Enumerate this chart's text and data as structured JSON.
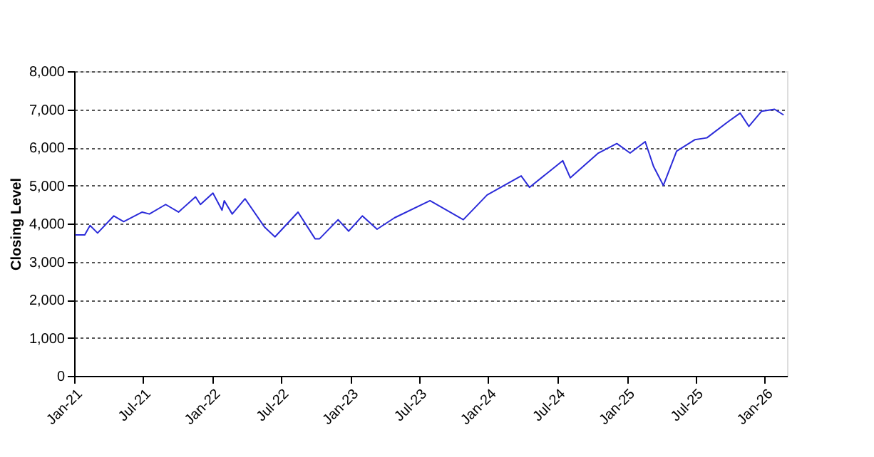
{
  "chart_data": {
    "type": "line",
    "ylabel": "Closing Level",
    "x": [
      "2021-01-04",
      "2021-01-29",
      "2021-02-12",
      "2021-03-04",
      "2021-04-16",
      "2021-05-12",
      "2021-06-30",
      "2021-07-19",
      "2021-08-31",
      "2021-10-04",
      "2021-11-18",
      "2021-12-01",
      "2022-01-03",
      "2022-01-27",
      "2022-02-02",
      "2022-02-23",
      "2022-03-29",
      "2022-05-20",
      "2022-06-16",
      "2022-08-16",
      "2022-09-30",
      "2022-10-12",
      "2022-11-30",
      "2022-12-28",
      "2023-02-02",
      "2023-03-13",
      "2023-04-28",
      "2023-07-31",
      "2023-10-27",
      "2023-12-29",
      "2024-03-28",
      "2024-04-19",
      "2024-07-16",
      "2024-08-05",
      "2024-10-18",
      "2024-12-06",
      "2025-01-10",
      "2025-02-19",
      "2025-03-13",
      "2025-04-08",
      "2025-05-13",
      "2025-06-30",
      "2025-08-01",
      "2025-09-30",
      "2025-10-28",
      "2025-11-20",
      "2025-12-24",
      "2026-01-27",
      "2026-02-20"
    ],
    "series": [
      {
        "color": "#2b2bd9",
        "values": [
          3700,
          3700,
          3950,
          3750,
          4200,
          4050,
          4300,
          4250,
          4500,
          4300,
          4700,
          4500,
          4800,
          4350,
          4600,
          4250,
          4650,
          3900,
          3650,
          4300,
          3600,
          3600,
          4100,
          3800,
          4200,
          3850,
          4150,
          4600,
          4100,
          4750,
          5250,
          4950,
          5650,
          5200,
          5850,
          6100,
          5850,
          6150,
          5500,
          5000,
          5900,
          6200,
          6250,
          6700,
          6900,
          6550,
          6950,
          7000,
          6850
        ]
      }
    ],
    "xlim": [
      "2021-01-01",
      "2026-03-01"
    ],
    "xticks": [
      {
        "value": "2021-01-01",
        "label": "Jan-21"
      },
      {
        "value": "2021-07-01",
        "label": "Jul-21"
      },
      {
        "value": "2022-01-01",
        "label": "Jan-22"
      },
      {
        "value": "2022-07-01",
        "label": "Jul-22"
      },
      {
        "value": "2023-01-01",
        "label": "Jan-23"
      },
      {
        "value": "2023-07-01",
        "label": "Jul-23"
      },
      {
        "value": "2024-01-01",
        "label": "Jan-24"
      },
      {
        "value": "2024-07-01",
        "label": "Jul-24"
      },
      {
        "value": "2025-01-01",
        "label": "Jan-25"
      },
      {
        "value": "2025-07-01",
        "label": "Jul-25"
      },
      {
        "value": "2026-01-01",
        "label": "Jan-26"
      }
    ],
    "ylim": [
      0,
      8000
    ],
    "yticks": [
      0,
      {
        "value": 1000,
        "label": "1,000"
      },
      {
        "value": 2000,
        "label": "2,000"
      },
      {
        "value": 3000,
        "label": "3,000"
      },
      {
        "value": 4000,
        "label": "4,000"
      },
      {
        "value": 5000,
        "label": "5,000"
      },
      {
        "value": 6000,
        "label": "6,000"
      },
      {
        "value": 7000,
        "label": "7,000"
      },
      {
        "value": 8000,
        "label": "8,000"
      }
    ],
    "grid": "y",
    "marker": "none",
    "line_style": "solid"
  }
}
